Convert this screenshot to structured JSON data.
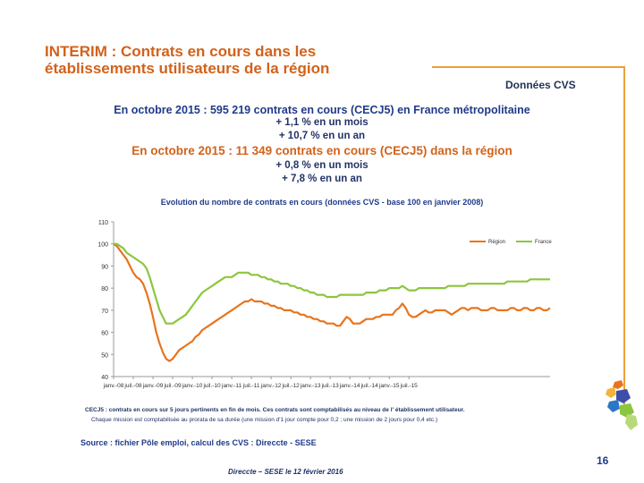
{
  "slide": {
    "title": "INTERIM : Contrats en cours dans les établissements utilisateurs de la région",
    "badge": "Données CVS",
    "headline1": "En octobre 2015 : 595 219 contrats en cours (CECJ5) en France métropolitaine",
    "headline1_month": "+ 1,1 % en un mois",
    "headline1_year": "+ 10,7 % en un an",
    "headline2": "En octobre 2015 : 11 349 contrats en cours (CECJ5) dans la région",
    "headline2_month": "+ 0,8 % en un mois",
    "headline2_year": "+ 7,8 % en un an",
    "footnote1": "CECJ5 : contrats en cours sur 5 jours pertinents en fin de mois. Ces contrats sont comptabilisés au niveau de l' établissement utilisateur.",
    "footnote2": "Chaque mission est comptabilisée au prorata de sa durée (une mission d'1 jour compte pour 0,2 ; une mission de 2 jours pour 0,4 etc.)",
    "source": "Source : fichier Pôle emploi, calcul des CVS : Direccte - SESE",
    "date_footer": "Direccte – SESE le 12 février 2016",
    "page_number": "16"
  },
  "colors": {
    "accent": "#d2621a",
    "frame": "#e8a13a",
    "navy": "#1f3a8a",
    "region_series": "#e8741e",
    "france_series": "#8cc63f"
  },
  "chart_data": {
    "type": "line",
    "title": "Evolution du nombre de contrats en cours (données CVS - base 100 en janvier 2008)",
    "xlabel": "",
    "ylabel": "",
    "ylim": [
      40,
      110
    ],
    "yticks": [
      40,
      50,
      60,
      70,
      80,
      90,
      100,
      110
    ],
    "x_tick_labels": [
      "janv.-08",
      "juil.-08",
      "janv.-09",
      "juil.-09",
      "janv.-10",
      "juil.-10",
      "janv.-11",
      "juil.-11",
      "janv.-12",
      "juil.-12",
      "janv.-13",
      "juil.-13",
      "janv.-14",
      "juil.-14",
      "janv.-15",
      "juil.-15"
    ],
    "start_month": "janv.-08",
    "grid": false,
    "legend_position": "top-right",
    "series": [
      {
        "name": "Région",
        "color": "#e8741e",
        "values": [
          100,
          99,
          97,
          95,
          93,
          90,
          87,
          85,
          84,
          82,
          78,
          73,
          67,
          60,
          55,
          51,
          48,
          47,
          48,
          50,
          52,
          53,
          54,
          55,
          56,
          58,
          59,
          61,
          62,
          63,
          64,
          65,
          66,
          67,
          68,
          69,
          70,
          71,
          72,
          73,
          74,
          74,
          75,
          74,
          74,
          74,
          73,
          73,
          72,
          72,
          71,
          71,
          70,
          70,
          70,
          69,
          69,
          68,
          68,
          67,
          67,
          66,
          66,
          65,
          65,
          64,
          64,
          64,
          63,
          63,
          65,
          67,
          66,
          64,
          64,
          64,
          65,
          66,
          66,
          66,
          67,
          67,
          68,
          68,
          68,
          68,
          70,
          71,
          73,
          71,
          68,
          67,
          67,
          68,
          69,
          70,
          69,
          69,
          70,
          70,
          70,
          70,
          69,
          68,
          69,
          70,
          71,
          71,
          70,
          71,
          71,
          71,
          70,
          70,
          70,
          71,
          71,
          70,
          70,
          70,
          70,
          71,
          71,
          70,
          70,
          71,
          71,
          70,
          70,
          71,
          71,
          70,
          70,
          71
        ]
      },
      {
        "name": "France",
        "color": "#8cc63f",
        "values": [
          100,
          100,
          99,
          98,
          96,
          95,
          94,
          93,
          92,
          91,
          89,
          85,
          80,
          75,
          70,
          67,
          64,
          64,
          64,
          65,
          66,
          67,
          68,
          70,
          72,
          74,
          76,
          78,
          79,
          80,
          81,
          82,
          83,
          84,
          85,
          85,
          85,
          86,
          87,
          87,
          87,
          87,
          86,
          86,
          86,
          85,
          85,
          84,
          84,
          83,
          83,
          82,
          82,
          82,
          81,
          81,
          80,
          80,
          79,
          79,
          78,
          78,
          77,
          77,
          77,
          76,
          76,
          76,
          76,
          77,
          77,
          77,
          77,
          77,
          77,
          77,
          77,
          78,
          78,
          78,
          78,
          79,
          79,
          79,
          80,
          80,
          80,
          80,
          81,
          80,
          79,
          79,
          79,
          80,
          80,
          80,
          80,
          80,
          80,
          80,
          80,
          80,
          81,
          81,
          81,
          81,
          81,
          81,
          82,
          82,
          82,
          82,
          82,
          82,
          82,
          82,
          82,
          82,
          82,
          82,
          83,
          83,
          83,
          83,
          83,
          83,
          83,
          84,
          84,
          84,
          84,
          84,
          84,
          84
        ]
      }
    ]
  }
}
